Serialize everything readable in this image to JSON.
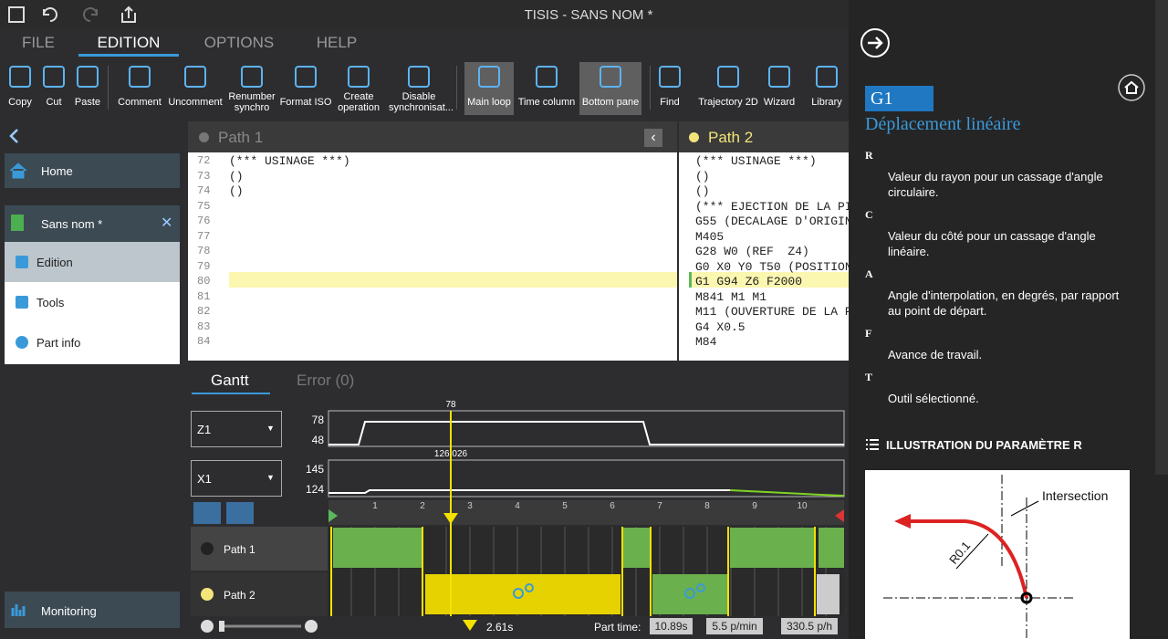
{
  "title_bar": {
    "title": "TISIS - SANS NOM *"
  },
  "menu": [
    "FILE",
    "EDITION",
    "OPTIONS",
    "HELP"
  ],
  "toolbar": [
    "Copy",
    "Cut",
    "Paste",
    "Comment",
    "Uncomment",
    "Renumber synchro",
    "Format ISO",
    "Create operation",
    "Disable synchronisat...",
    "Main loop",
    "Time column",
    "Bottom pane",
    "Find",
    "Trajectory 2D",
    "Wizard",
    "Library"
  ],
  "sidebar": {
    "home": "Home",
    "document": "Sans nom *",
    "items": [
      "Edition",
      "Tools",
      "Part info"
    ],
    "monitoring": "Monitoring"
  },
  "editor": {
    "line_numbers": [
      "72",
      "73",
      "74",
      "75",
      "76",
      "77",
      "78",
      "79",
      "80",
      "81",
      "82",
      "83",
      "84"
    ],
    "panes": [
      {
        "title": "Path 1",
        "lines": [
          "(*** USINAGE ***)",
          "()",
          "()"
        ]
      },
      {
        "title": "Path 2",
        "lines": [
          "(*** USINAGE ***)",
          "()",
          "()",
          "(*** EJECTION DE LA PI",
          "G55 (DECALAGE D'ORIGIN",
          "M405",
          "G28 W0 (REF  Z4)",
          "G0 X0 Y0 T50 (POSITION",
          "G1 G94 Z6 F2000",
          "M841 M1 M1",
          "M11 (OUVERTURE DE LA P",
          "G4 X0.5",
          "M84"
        ]
      }
    ]
  },
  "gantt": {
    "tabs": [
      "Gantt",
      "Error (0)"
    ],
    "channels": [
      {
        "name": "Z1",
        "max": "78",
        "min": "48",
        "cursor": "78"
      },
      {
        "name": "X1",
        "max": "145",
        "min": "124",
        "cursor": "126.026"
      }
    ],
    "timeline": [
      "1",
      "2",
      "3",
      "4",
      "5",
      "6",
      "7",
      "8",
      "9",
      "10"
    ],
    "paths": [
      "Path 1",
      "Path 2"
    ],
    "status": {
      "cursor_time": "2.61s",
      "part_time_label": "Part time:",
      "part_time": "10.89s",
      "rate_min": "5.5 p/min",
      "rate_hour": "330.5 p/h"
    }
  },
  "help": {
    "code": "G1",
    "title": "Déplacement linéaire",
    "params": [
      {
        "name": "R",
        "text": "Valeur du rayon pour un cassage d'angle circulaire."
      },
      {
        "name": "C",
        "text": "Valeur du côté pour un cassage d'angle linéaire."
      },
      {
        "name": "A",
        "text": "Angle d'interpolation, en degrés, par rapport au point de départ."
      },
      {
        "name": "F",
        "text": "Avance de travail."
      },
      {
        "name": "T",
        "text": "Outil sélectionné."
      }
    ],
    "illustration_title": "ILLUSTRATION DU PARAMÈTRE R",
    "illustration_labels": [
      "Intersection",
      "R0.1"
    ]
  }
}
